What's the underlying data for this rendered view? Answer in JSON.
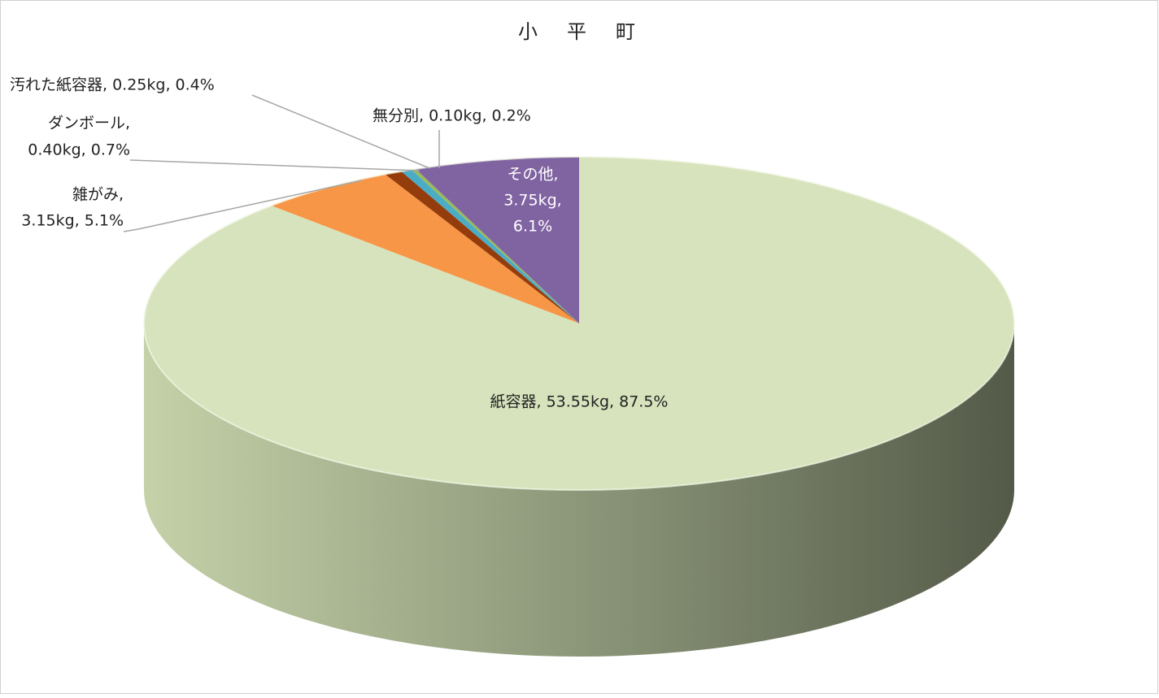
{
  "chart_data": {
    "type": "pie3d",
    "title": "小　平　町",
    "categories": [
      "紙容器",
      "雑がみ",
      "ダンボール",
      "汚れた紙容器",
      "無分別",
      "その他"
    ],
    "values": [
      53.55,
      3.15,
      0.4,
      0.25,
      0.1,
      3.75
    ],
    "value_labels": [
      [
        "紙容器, 53.55kg, 87.5%"
      ],
      [
        "雑がみ,",
        "3.15kg, 5.1%"
      ],
      [
        "ダンボール,",
        "0.40kg, 0.7%"
      ],
      [
        "汚れた紙容器, 0.25kg, 0.4%"
      ],
      [
        "無分別, 0.10kg, 0.2%"
      ],
      [
        "その他,",
        "3.75kg,",
        "6.1%"
      ]
    ],
    "colors": [
      "#d7e3bd",
      "#f79646",
      "#953c0c",
      "#4bacc6",
      "#9bbb59",
      "#8064a2"
    ]
  }
}
